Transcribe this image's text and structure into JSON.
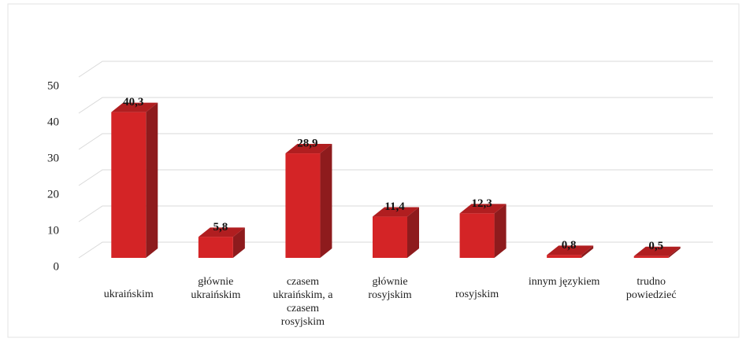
{
  "chart_data": {
    "type": "bar3d",
    "categories": [
      "ukraińskim",
      "głównie ukraińskim",
      "czasem ukraińskim, a czasem rosyjskim",
      "głównie rosyjskim",
      "rosyjskim",
      "innym językiem",
      "trudno powiedzieć"
    ],
    "values": [
      40.3,
      5.8,
      28.9,
      11.4,
      12.3,
      0.8,
      0.5
    ],
    "value_labels": [
      "40,3",
      "5,8",
      "28,9",
      "11,4",
      "12,3",
      "0,8",
      "0,5"
    ],
    "color": "#d42426",
    "ylim": [
      0,
      50
    ],
    "yticks": [
      0,
      10,
      20,
      30,
      40,
      50
    ],
    "grid": true
  }
}
